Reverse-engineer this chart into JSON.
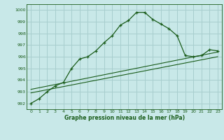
{
  "xlabel": "Graphe pression niveau de la mer (hPa)",
  "bg_color": "#c8e8e8",
  "grid_color": "#a8cece",
  "line_color": "#1a5c1a",
  "xlim": [
    -0.5,
    23.5
  ],
  "ylim": [
    991.5,
    1000.5
  ],
  "yticks": [
    992,
    993,
    994,
    995,
    996,
    997,
    998,
    999,
    1000
  ],
  "xticks": [
    0,
    1,
    2,
    3,
    4,
    5,
    6,
    7,
    8,
    9,
    10,
    11,
    12,
    13,
    14,
    15,
    16,
    17,
    18,
    19,
    20,
    21,
    22,
    23
  ],
  "main_line_x": [
    0,
    1,
    2,
    3,
    4,
    5,
    6,
    7,
    8,
    9,
    10,
    11,
    12,
    13,
    14,
    15,
    16,
    17,
    18,
    19,
    20,
    21,
    22,
    23
  ],
  "main_line_y": [
    992.0,
    992.4,
    993.0,
    993.5,
    993.8,
    995.0,
    995.8,
    996.0,
    996.5,
    997.2,
    997.8,
    998.7,
    999.1,
    999.8,
    999.8,
    999.2,
    998.8,
    998.4,
    997.8,
    996.1,
    996.0,
    996.1,
    996.6,
    996.5
  ],
  "trend_line_x": [
    0,
    23
  ],
  "trend_line_y": [
    992.9,
    996.0
  ],
  "trend2_line_x": [
    0,
    23
  ],
  "trend2_line_y": [
    993.2,
    996.4
  ]
}
